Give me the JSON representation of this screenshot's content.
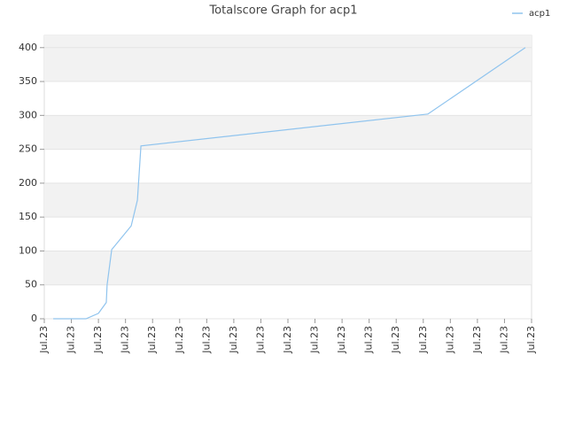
{
  "chart_data": {
    "type": "line",
    "title": "Totalscore Graph for acp1",
    "series": [
      {
        "name": "acp1",
        "color": "#90c4ee",
        "x": [
          0.33,
          1.54,
          2.0,
          2.29,
          2.32,
          2.49,
          3.21,
          3.44,
          3.57,
          14.17,
          17.77
        ],
        "values": [
          0,
          0,
          8,
          24,
          50,
          102,
          137,
          175,
          255,
          302,
          400
        ]
      }
    ],
    "xlim": [
      0,
      18
    ],
    "xticks": [
      {
        "value": 0,
        "label": "Jul.23"
      },
      {
        "value": 1,
        "label": "Jul.23"
      },
      {
        "value": 2,
        "label": "Jul.23"
      },
      {
        "value": 3,
        "label": "Jul.23"
      },
      {
        "value": 4,
        "label": "Jul.23"
      },
      {
        "value": 5,
        "label": "Jul.23"
      },
      {
        "value": 6,
        "label": "Jul.23"
      },
      {
        "value": 7,
        "label": "Jul.23"
      },
      {
        "value": 8,
        "label": "Jul.23"
      },
      {
        "value": 9,
        "label": "Jul.23"
      },
      {
        "value": 10,
        "label": "Jul.23"
      },
      {
        "value": 11,
        "label": "Jul.23"
      },
      {
        "value": 12,
        "label": "Jul.23"
      },
      {
        "value": 13,
        "label": "Jul.23"
      },
      {
        "value": 14,
        "label": "Jul.23"
      },
      {
        "value": 15,
        "label": "Jul.23"
      },
      {
        "value": 16,
        "label": "Jul.23"
      },
      {
        "value": 17,
        "label": "Jul.23"
      },
      {
        "value": 18,
        "label": "Jul.23"
      }
    ],
    "ylim": [
      0,
      418
    ],
    "yticks": [
      0,
      50,
      100,
      150,
      200,
      250,
      300,
      350,
      400
    ],
    "banded_grid": true,
    "legend": "top-right"
  }
}
